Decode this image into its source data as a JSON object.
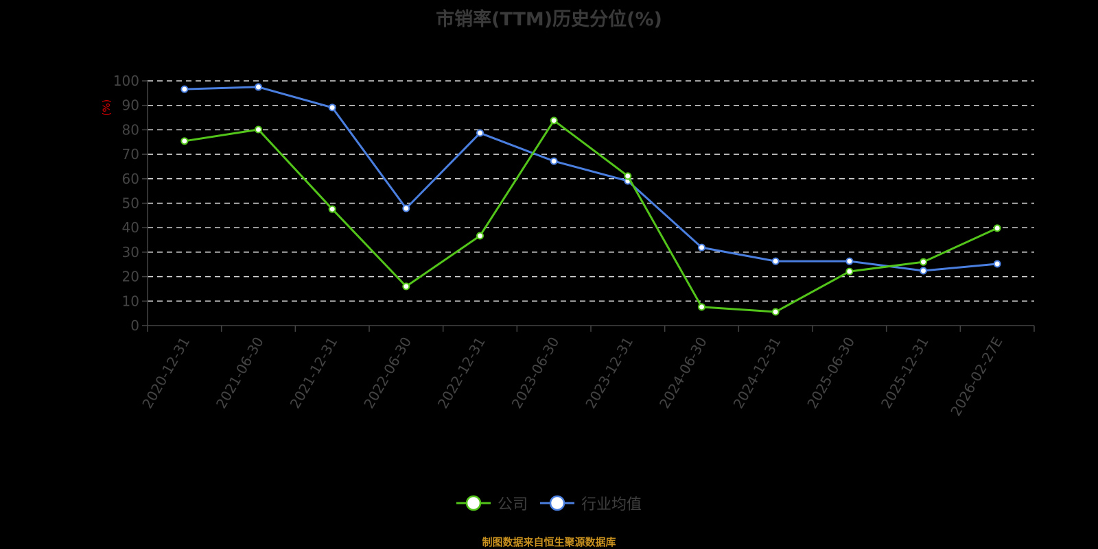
{
  "title": "市销率(TTM)历史分位(%)",
  "y_unit": "(%)",
  "legend": [
    {
      "label": "公司",
      "color": "#52c41a"
    },
    {
      "label": "行业均值",
      "color": "#4a7fe0"
    }
  ],
  "source": "制图数据来自恒生聚源数据库",
  "colors": {
    "company": "#52c41a",
    "industry": "#4a7fe0",
    "grid": "#d9d9d9",
    "axis": "#444444",
    "source": "#c8901e"
  },
  "chart_data": {
    "type": "line",
    "title": "市销率(TTM)历史分位(%)",
    "xlabel": "",
    "ylabel": "(%)",
    "ylim": [
      0,
      100
    ],
    "yticks": [
      0,
      10,
      20,
      30,
      40,
      50,
      60,
      70,
      80,
      90,
      100
    ],
    "grid": true,
    "legend_position": "bottom",
    "categories": [
      "2020-12-31",
      "2021-06-30",
      "2021-12-31",
      "2022-06-30",
      "2022-12-31",
      "2023-06-30",
      "2023-12-31",
      "2024-06-30",
      "2024-12-31",
      "2025-06-30",
      "2025-12-31",
      "2026-02-27E"
    ],
    "series": [
      {
        "name": "公司",
        "color": "#52c41a",
        "values": [
          75.4,
          80.1,
          47.6,
          16.0,
          36.7,
          83.8,
          61.1,
          7.6,
          5.6,
          22.1,
          26.0,
          39.8
        ]
      },
      {
        "name": "行业均值",
        "color": "#4a7fe0",
        "values": [
          96.6,
          97.5,
          89.1,
          47.9,
          78.7,
          67.2,
          59.1,
          31.9,
          26.3,
          26.3,
          22.4,
          25.2
        ]
      }
    ]
  }
}
